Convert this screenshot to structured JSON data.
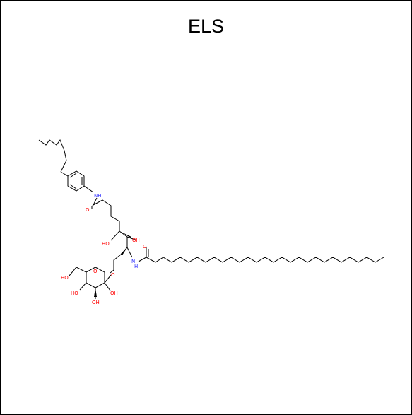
{
  "title": "ELS",
  "colors": {
    "oxygen": "#ff0000",
    "nitrogen": "#3333ff",
    "carbon": "#000000"
  },
  "atoms": {
    "nh_aryl": "NH",
    "o_amide1": "O",
    "ho_c3": "HO",
    "oh_c4": "OH",
    "o_amide2": "O",
    "nh_amide2": "N",
    "h_amide2": "H",
    "o_glycosidic": "O",
    "o_ring": "O",
    "ho_c6": "HO",
    "ho_c4s": "HO",
    "oh_c3s": "OH",
    "oh_c2s": "OH"
  }
}
